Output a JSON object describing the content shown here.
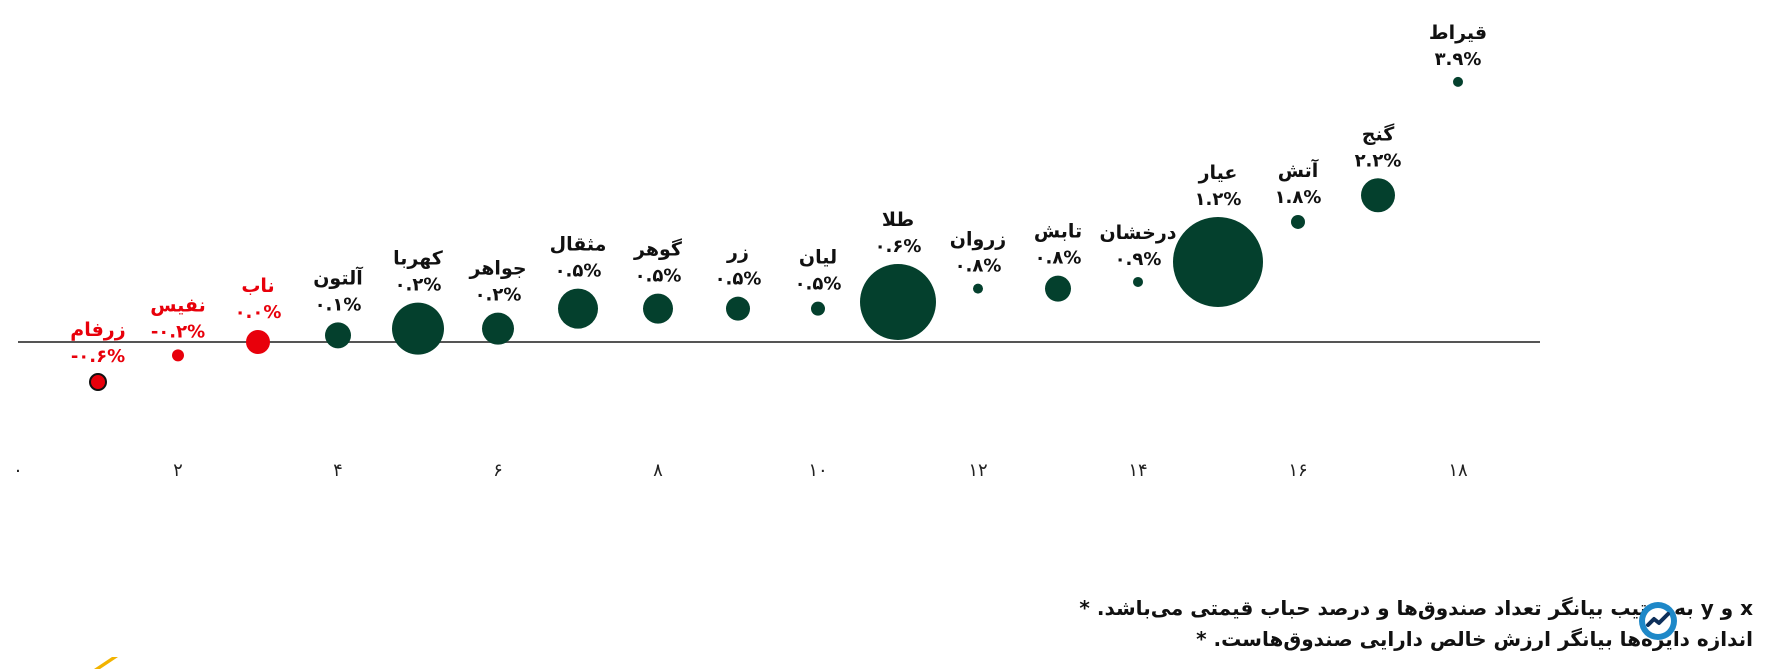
{
  "chart_data": {
    "type": "scatter",
    "title": "",
    "xlabel": "",
    "ylabel": "",
    "xlim": [
      0,
      19
    ],
    "ylim": [
      -1.2,
      4.2
    ],
    "x_ticks": [
      0,
      2,
      4,
      6,
      8,
      10,
      12,
      14,
      16,
      18
    ],
    "x_tick_labels": [
      "۰",
      "۲",
      "۴",
      "۶",
      "۸",
      "۱۰",
      "۱۲",
      "۱۴",
      "۱۶",
      "۱۸"
    ],
    "grid": false,
    "legend": "none",
    "colors": {
      "positive": "#04402d",
      "negative": "#e8000b"
    },
    "points": [
      {
        "name": "زرفام",
        "x": 1,
        "y": -0.6,
        "label": "-۰.۶%",
        "size": 8
      },
      {
        "name": "نفیس",
        "x": 2,
        "y": -0.2,
        "label": "-۰.۲%",
        "size": 6
      },
      {
        "name": "ناب",
        "x": 3,
        "y": 0.0,
        "label": "۰.۰%",
        "size": 12
      },
      {
        "name": "آلتون",
        "x": 4,
        "y": 0.1,
        "label": "۰.۱%",
        "size": 13
      },
      {
        "name": "کهربا",
        "x": 5,
        "y": 0.2,
        "label": "۰.۲%",
        "size": 26
      },
      {
        "name": "جواهر",
        "x": 6,
        "y": 0.2,
        "label": "۰.۲%",
        "size": 16
      },
      {
        "name": "مثقال",
        "x": 7,
        "y": 0.5,
        "label": "۰.۵%",
        "size": 20
      },
      {
        "name": "گوهر",
        "x": 8,
        "y": 0.5,
        "label": "۰.۵%",
        "size": 15
      },
      {
        "name": "زر",
        "x": 9,
        "y": 0.5,
        "label": "۰.۵%",
        "size": 12
      },
      {
        "name": "لیان",
        "x": 10,
        "y": 0.5,
        "label": "۰.۵%",
        "size": 7
      },
      {
        "name": "طلا",
        "x": 11,
        "y": 0.6,
        "label": "۰.۶%",
        "size": 38
      },
      {
        "name": "زروان",
        "x": 12,
        "y": 0.8,
        "label": "۰.۸%",
        "size": 5
      },
      {
        "name": "تابش",
        "x": 13,
        "y": 0.8,
        "label": "۰.۸%",
        "size": 13
      },
      {
        "name": "درخشان",
        "x": 14,
        "y": 0.9,
        "label": "۰.۹%",
        "size": 5
      },
      {
        "name": "عیار",
        "x": 15,
        "y": 1.2,
        "label": "۱.۲%",
        "size": 45
      },
      {
        "name": "آتش",
        "x": 16,
        "y": 1.8,
        "label": "۱.۸%",
        "size": 7
      },
      {
        "name": "گنج",
        "x": 17,
        "y": 2.2,
        "label": "۲.۲%",
        "size": 17
      },
      {
        "name": "قیراط",
        "x": 18,
        "y": 3.9,
        "label": "۳.۹%",
        "size": 5
      }
    ]
  },
  "notes": {
    "line1": "x و y  به ترتیب بیانگر تعداد صندوق‌ها و درصد حباب قیمتی می‌باشد.",
    "line2": "اندازه دایره‌ها بیانگر ارزش خالص دارایی صندوق‌هاست.",
    "bullet": "*"
  },
  "icons": {
    "logo": "brand-logo-icon",
    "accent": "accent-mark-icon"
  }
}
